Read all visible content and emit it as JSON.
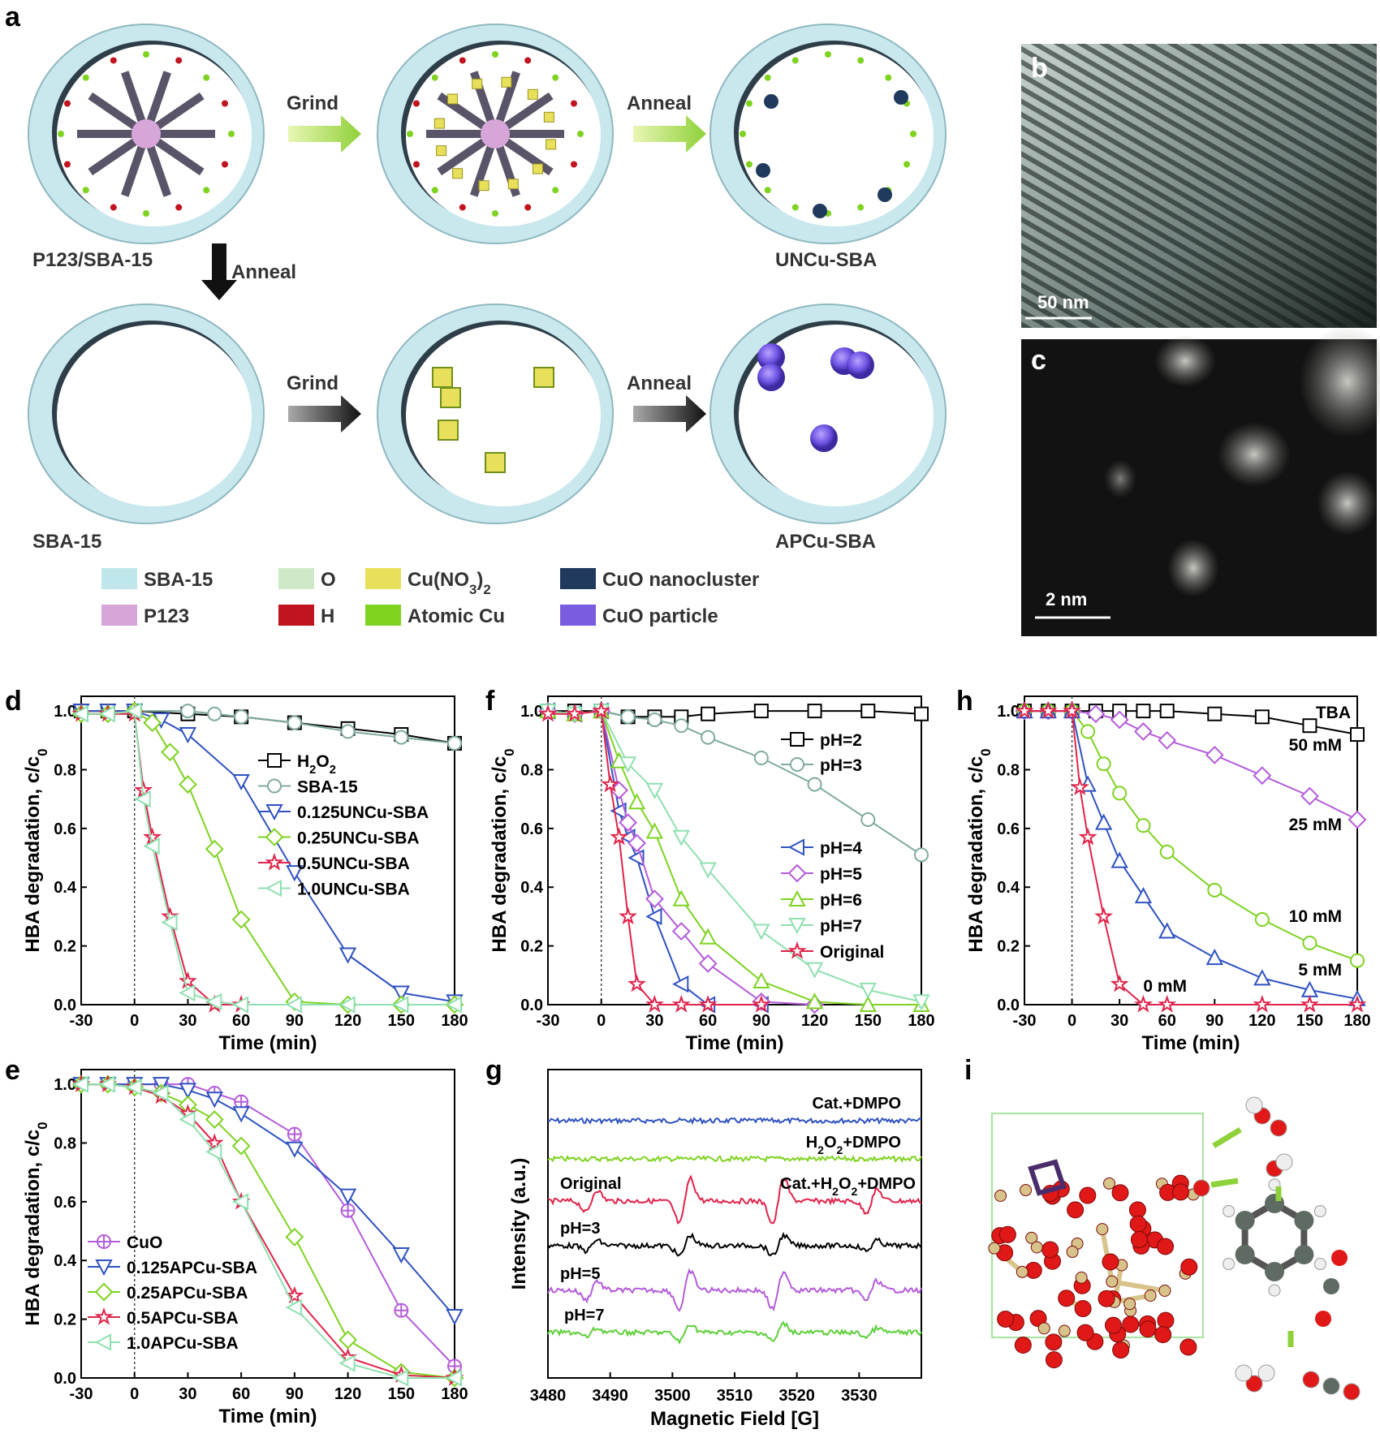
{
  "panel_letters": {
    "a": "a",
    "b": "b",
    "c": "c",
    "d": "d",
    "e": "e",
    "f": "f",
    "g": "g",
    "h": "h",
    "i": "i"
  },
  "scheme": {
    "step_labels": {
      "grind_top": "Grind",
      "anneal_top": "Anneal",
      "anneal_down": "Anneal",
      "grind_bottom": "Grind",
      "anneal_bottom": "Anneal"
    },
    "ring_labels": {
      "p123": "P123/SBA-15",
      "uncu": "UNCu-SBA",
      "sba15": "SBA-15",
      "apcu": "APCu-SBA"
    },
    "legend": [
      {
        "label": "SBA-15",
        "color": "#bfe6ea"
      },
      {
        "label": "O",
        "color": "#cfe9c8"
      },
      {
        "label": "Cu(NO3)2",
        "color": "#e8e05a"
      },
      {
        "label": "CuO nanocluster",
        "color": "#1f3a5c"
      },
      {
        "label": "P123",
        "color": "#d6a6d8"
      },
      {
        "label": "H",
        "color": "#c0141e"
      },
      {
        "label": "Atomic Cu",
        "color": "#7ed321"
      },
      {
        "label": "CuO particle",
        "color": "#7a5ce0"
      }
    ]
  },
  "micrographs": {
    "b_scale": "50 nm",
    "c_scale": "2 nm"
  },
  "chart_data": [
    {
      "panel": "d",
      "type": "line",
      "xlabel": "Time (min)",
      "ylabel": "HBA degradation, c/c0",
      "xlim": [
        -30,
        180
      ],
      "ylim": [
        0,
        1.05
      ],
      "xticks": [
        -30,
        0,
        30,
        60,
        90,
        120,
        150,
        180
      ],
      "yticks": [
        0.0,
        0.2,
        0.4,
        0.6,
        0.8,
        1.0
      ],
      "series": [
        {
          "name": "H2O2",
          "color": "#000000",
          "marker": "square",
          "x": [
            -30,
            -15,
            0,
            30,
            60,
            90,
            120,
            150,
            180
          ],
          "y": [
            1.0,
            1.0,
            1.0,
            0.99,
            0.98,
            0.96,
            0.94,
            0.92,
            0.89
          ]
        },
        {
          "name": "SBA-15",
          "color": "#7faaa0",
          "marker": "circle",
          "x": [
            -30,
            -15,
            0,
            30,
            45,
            60,
            90,
            120,
            150,
            180
          ],
          "y": [
            1.0,
            1.0,
            1.0,
            1.0,
            0.99,
            0.98,
            0.96,
            0.93,
            0.91,
            0.89
          ]
        },
        {
          "name": "0.125UNCu-SBA",
          "color": "#2f52c0",
          "marker": "triangle-down",
          "x": [
            -30,
            -15,
            0,
            15,
            30,
            60,
            90,
            120,
            150,
            180
          ],
          "y": [
            1.0,
            1.0,
            1.0,
            0.97,
            0.92,
            0.76,
            0.45,
            0.17,
            0.04,
            0.01
          ]
        },
        {
          "name": "0.25UNCu-SBA",
          "color": "#7ed321",
          "marker": "diamond",
          "x": [
            -30,
            -15,
            0,
            10,
            20,
            30,
            45,
            60,
            90,
            120,
            150,
            180
          ],
          "y": [
            0.99,
            0.99,
            1.0,
            0.96,
            0.86,
            0.75,
            0.53,
            0.29,
            0.01,
            0.0,
            0.0,
            0.0
          ]
        },
        {
          "name": "0.5UNCu-SBA",
          "color": "#e0234a",
          "marker": "star",
          "x": [
            -30,
            -15,
            0,
            5,
            10,
            20,
            30,
            45,
            60
          ],
          "y": [
            0.99,
            0.99,
            0.99,
            0.73,
            0.57,
            0.3,
            0.08,
            0.0,
            0.0
          ]
        },
        {
          "name": "1.0UNCu-SBA",
          "color": "#8fe0b0",
          "marker": "triangle-left",
          "x": [
            -30,
            -15,
            0,
            5,
            10,
            20,
            30,
            45,
            60,
            90,
            120,
            150,
            180
          ],
          "y": [
            0.99,
            0.99,
            1.0,
            0.7,
            0.54,
            0.28,
            0.04,
            0.01,
            0.0,
            0.0,
            0.0,
            0.0,
            0.0
          ]
        }
      ]
    },
    {
      "panel": "e",
      "type": "line",
      "xlabel": "Time (min)",
      "ylabel": "HBA degradation, c/c0",
      "xlim": [
        -30,
        180
      ],
      "ylim": [
        0,
        1.05
      ],
      "xticks": [
        -30,
        0,
        30,
        60,
        90,
        120,
        150,
        180
      ],
      "yticks": [
        0.0,
        0.2,
        0.4,
        0.6,
        0.8,
        1.0
      ],
      "series": [
        {
          "name": "CuO",
          "color": "#b45cd9",
          "marker": "circle-plus",
          "x": [
            -30,
            -15,
            0,
            15,
            30,
            45,
            60,
            90,
            120,
            150,
            180
          ],
          "y": [
            1.0,
            1.0,
            1.0,
            1.0,
            1.0,
            0.97,
            0.94,
            0.83,
            0.57,
            0.23,
            0.04
          ]
        },
        {
          "name": "0.125APCu-SBA",
          "color": "#2f52c0",
          "marker": "triangle-down",
          "x": [
            -30,
            -15,
            0,
            15,
            30,
            45,
            60,
            90,
            120,
            150,
            180
          ],
          "y": [
            1.0,
            1.0,
            1.0,
            1.0,
            0.98,
            0.95,
            0.9,
            0.78,
            0.62,
            0.42,
            0.21
          ]
        },
        {
          "name": "0.25APCu-SBA",
          "color": "#7ed321",
          "marker": "diamond",
          "x": [
            -30,
            -15,
            0,
            15,
            30,
            45,
            60,
            90,
            120,
            150,
            180
          ],
          "y": [
            1.0,
            1.0,
            0.99,
            0.97,
            0.93,
            0.88,
            0.79,
            0.48,
            0.13,
            0.02,
            0.0
          ]
        },
        {
          "name": "0.5APCu-SBA",
          "color": "#e0234a",
          "marker": "star",
          "x": [
            -30,
            -15,
            0,
            15,
            30,
            45,
            60,
            90,
            120,
            150,
            180
          ],
          "y": [
            1.0,
            1.0,
            0.99,
            0.96,
            0.9,
            0.8,
            0.6,
            0.28,
            0.07,
            0.01,
            0.0
          ]
        },
        {
          "name": "1.0APCu-SBA",
          "color": "#8fe0b0",
          "marker": "triangle-left",
          "x": [
            -30,
            -15,
            0,
            15,
            30,
            45,
            60,
            90,
            120,
            150,
            180
          ],
          "y": [
            1.0,
            1.0,
            0.99,
            0.97,
            0.88,
            0.77,
            0.6,
            0.24,
            0.05,
            0.0,
            0.0
          ]
        }
      ]
    },
    {
      "panel": "f",
      "type": "line",
      "xlabel": "Time (min)",
      "ylabel": "HBA degradation, c/c0",
      "xlim": [
        -30,
        180
      ],
      "ylim": [
        0,
        1.05
      ],
      "xticks": [
        -30,
        0,
        30,
        60,
        90,
        120,
        150,
        180
      ],
      "yticks": [
        0.0,
        0.2,
        0.4,
        0.6,
        0.8,
        1.0
      ],
      "series": [
        {
          "name": "pH=2",
          "color": "#000000",
          "marker": "square",
          "x": [
            -30,
            -15,
            0,
            15,
            30,
            45,
            60,
            90,
            120,
            150,
            180
          ],
          "y": [
            1.0,
            1.0,
            1.0,
            0.98,
            0.98,
            0.98,
            0.99,
            1.0,
            1.0,
            1.0,
            0.99
          ]
        },
        {
          "name": "pH=3",
          "color": "#7faaa0",
          "marker": "circle",
          "x": [
            -30,
            -15,
            0,
            15,
            30,
            45,
            60,
            90,
            120,
            150,
            180
          ],
          "y": [
            1.0,
            0.99,
            1.0,
            0.98,
            0.97,
            0.95,
            0.91,
            0.84,
            0.75,
            0.63,
            0.51
          ]
        },
        {
          "name": "pH=4",
          "color": "#2f52c0",
          "marker": "triangle-left",
          "x": [
            -30,
            -15,
            0,
            10,
            15,
            20,
            30,
            45,
            60,
            90
          ],
          "y": [
            1.0,
            0.99,
            1.0,
            0.66,
            0.57,
            0.5,
            0.3,
            0.07,
            0.0,
            0.0
          ]
        },
        {
          "name": "pH=5",
          "color": "#b45cd9",
          "marker": "diamond",
          "x": [
            -30,
            -15,
            0,
            10,
            15,
            20,
            30,
            45,
            60,
            90,
            120
          ],
          "y": [
            1.0,
            0.99,
            1.0,
            0.73,
            0.62,
            0.55,
            0.36,
            0.25,
            0.14,
            0.01,
            0.0
          ]
        },
        {
          "name": "pH=6",
          "color": "#7ed321",
          "marker": "triangle-up",
          "x": [
            -30,
            -15,
            0,
            10,
            20,
            30,
            45,
            60,
            90,
            120,
            150,
            180
          ],
          "y": [
            1.0,
            0.99,
            1.0,
            0.83,
            0.69,
            0.59,
            0.36,
            0.23,
            0.08,
            0.01,
            0.0,
            0.0
          ]
        },
        {
          "name": "pH=7",
          "color": "#8fe0b0",
          "marker": "triangle-down",
          "x": [
            -30,
            -15,
            0,
            15,
            30,
            45,
            60,
            90,
            120,
            150,
            180
          ],
          "y": [
            1.0,
            0.99,
            1.0,
            0.82,
            0.73,
            0.57,
            0.46,
            0.25,
            0.12,
            0.05,
            0.01
          ]
        },
        {
          "name": "Original",
          "color": "#e0234a",
          "marker": "star",
          "x": [
            -30,
            -15,
            0,
            5,
            10,
            15,
            20,
            30,
            45,
            60,
            90
          ],
          "y": [
            0.99,
            0.99,
            1.0,
            0.75,
            0.57,
            0.3,
            0.07,
            0.0,
            0.0,
            0.0,
            0.0
          ]
        }
      ]
    },
    {
      "panel": "g",
      "type": "line",
      "xlabel": "Magnetic Field [G]",
      "ylabel": "Intensity (a.u.)",
      "xlim": [
        3480,
        3540
      ],
      "xticks": [
        3480,
        3490,
        3500,
        3510,
        3520,
        3530
      ],
      "series": [
        {
          "name": "Cat.+DMPO",
          "color": "#2f52c0"
        },
        {
          "name": "H2O2+DMPO",
          "color": "#7ed321"
        },
        {
          "name": "Cat.+H2O2+DMPO",
          "color": "#e0234a",
          "label_left": "Original"
        },
        {
          "name": "pH=3",
          "color": "#000000"
        },
        {
          "name": "pH=5",
          "color": "#b45cd9"
        },
        {
          "name": "pH=7",
          "color": "#5fcf3b"
        }
      ],
      "peaks_G": [
        3487,
        3502,
        3517,
        3532
      ],
      "peak_ratio": [
        1,
        2,
        2,
        1
      ]
    },
    {
      "panel": "h",
      "type": "line",
      "xlabel": "Time (min)",
      "ylabel": "HBA degradation, c/c0",
      "xlim": [
        -30,
        180
      ],
      "ylim": [
        0,
        1.05
      ],
      "xticks": [
        -30,
        0,
        30,
        60,
        90,
        120,
        150,
        180
      ],
      "yticks": [
        0.0,
        0.2,
        0.4,
        0.6,
        0.8,
        1.0
      ],
      "legend_title": "TBA",
      "series": [
        {
          "name": "50 mM",
          "color": "#000000",
          "marker": "square",
          "x": [
            -30,
            -15,
            0,
            15,
            30,
            45,
            60,
            90,
            120,
            150,
            180
          ],
          "y": [
            1.0,
            1.0,
            1.0,
            1.0,
            1.0,
            1.0,
            1.0,
            0.99,
            0.98,
            0.95,
            0.92
          ]
        },
        {
          "name": "25 mM",
          "color": "#b45cd9",
          "marker": "diamond",
          "x": [
            -30,
            -15,
            0,
            15,
            30,
            45,
            60,
            90,
            120,
            150,
            180
          ],
          "y": [
            1.0,
            1.0,
            1.0,
            0.99,
            0.97,
            0.93,
            0.9,
            0.85,
            0.78,
            0.71,
            0.63
          ]
        },
        {
          "name": "10 mM",
          "color": "#7ed321",
          "marker": "circle",
          "x": [
            -30,
            -15,
            0,
            10,
            20,
            30,
            45,
            60,
            90,
            120,
            150,
            180
          ],
          "y": [
            1.0,
            1.0,
            1.0,
            0.93,
            0.82,
            0.72,
            0.61,
            0.52,
            0.39,
            0.29,
            0.21,
            0.15
          ]
        },
        {
          "name": "5 mM",
          "color": "#2f52c0",
          "marker": "triangle-up",
          "x": [
            -30,
            -15,
            0,
            10,
            20,
            30,
            45,
            60,
            90,
            120,
            150,
            180
          ],
          "y": [
            1.0,
            1.0,
            1.0,
            0.75,
            0.62,
            0.49,
            0.37,
            0.25,
            0.16,
            0.09,
            0.05,
            0.02
          ]
        },
        {
          "name": "0 mM",
          "color": "#e0234a",
          "marker": "star",
          "x": [
            -30,
            -15,
            0,
            5,
            10,
            20,
            30,
            45,
            60,
            120,
            150,
            180
          ],
          "y": [
            1.0,
            1.0,
            1.0,
            0.74,
            0.57,
            0.3,
            0.07,
            0.0,
            0.0,
            0.0,
            0.0,
            0.0
          ]
        }
      ]
    }
  ]
}
